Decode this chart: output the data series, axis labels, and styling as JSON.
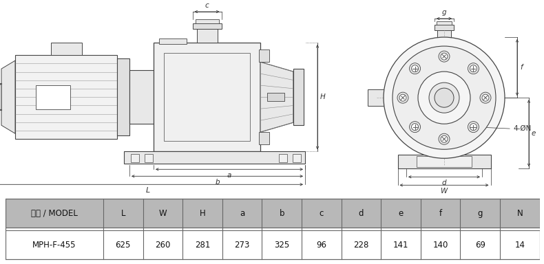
{
  "title": "",
  "table_header": [
    "型式 / MODEL",
    "L",
    "W",
    "H",
    "a",
    "b",
    "c",
    "d",
    "e",
    "f",
    "g",
    "N"
  ],
  "table_row": [
    "MPH-F-455",
    "625",
    "260",
    "281",
    "273",
    "325",
    "96",
    "228",
    "141",
    "140",
    "69",
    "14"
  ],
  "header_bg": "#b8b8b8",
  "row_bg": "#ffffff",
  "border_color": "#666666",
  "text_color": "#111111",
  "drawing_color": "#444444",
  "dim_color": "#333333",
  "fig_bg": "#ffffff",
  "line_color": "#333333"
}
